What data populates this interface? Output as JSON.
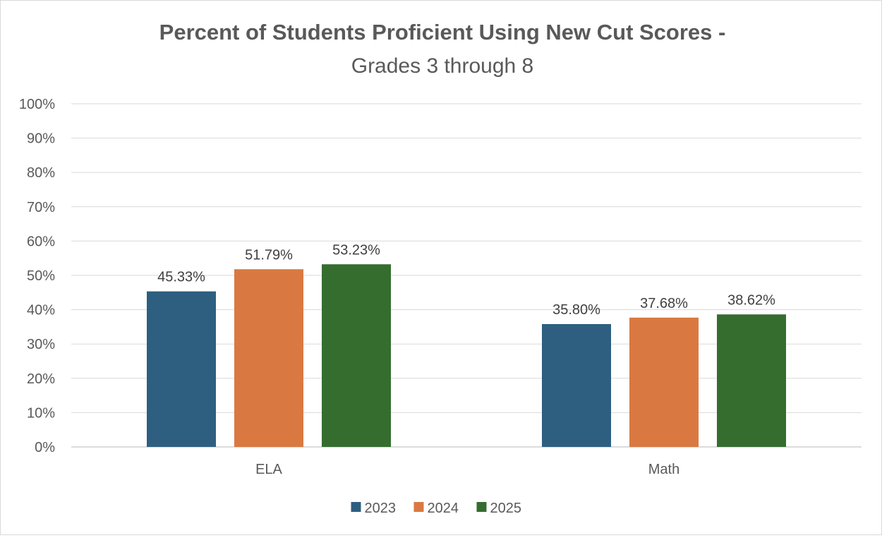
{
  "chart_data": {
    "type": "bar",
    "title": "Percent of Students Proficient Using New Cut Scores -",
    "subtitle": "Grades 3 through 8",
    "categories": [
      "ELA",
      "Math"
    ],
    "series": [
      {
        "name": "2023",
        "color": "#2e5f80",
        "values": [
          45.33,
          35.8
        ],
        "labels": [
          "45.33%",
          "35.80%"
        ]
      },
      {
        "name": "2024",
        "color": "#d97941",
        "values": [
          51.79,
          37.68
        ],
        "labels": [
          "51.79%",
          "37.68%"
        ]
      },
      {
        "name": "2025",
        "color": "#356d2f",
        "values": [
          53.23,
          38.62
        ],
        "labels": [
          "53.23%",
          "38.62%"
        ]
      }
    ],
    "ylim": [
      0,
      100
    ],
    "yticks": [
      "0%",
      "10%",
      "20%",
      "30%",
      "40%",
      "50%",
      "60%",
      "70%",
      "80%",
      "90%",
      "100%"
    ],
    "grid": true,
    "legend_position": "bottom",
    "xlabel": "",
    "ylabel": ""
  }
}
